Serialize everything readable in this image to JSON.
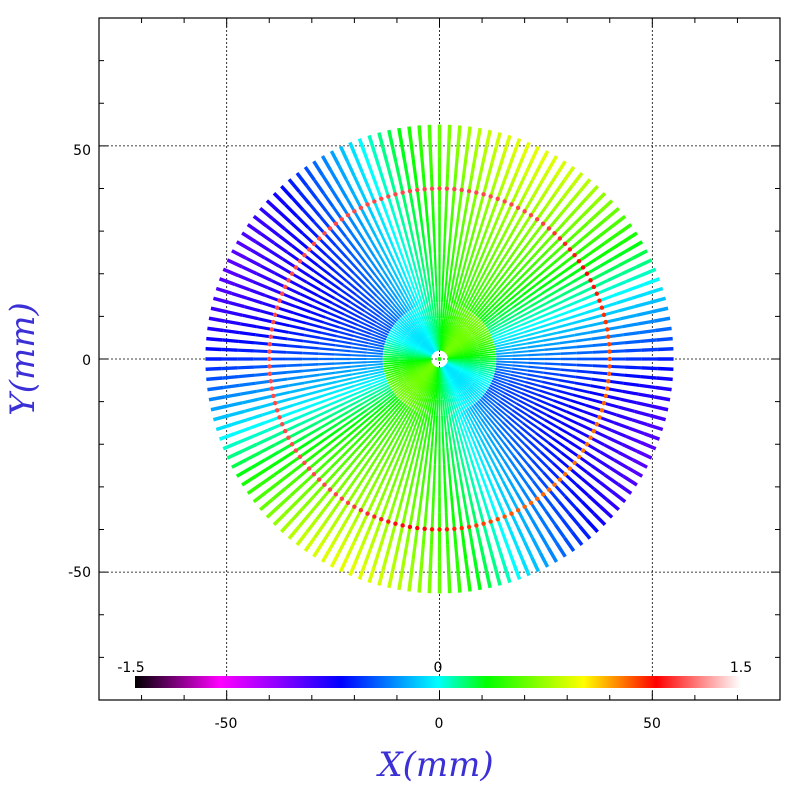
{
  "chart_data": {
    "type": "scatter",
    "xlabel": "X(mm)",
    "ylabel": "Y(mm)",
    "xlim": [
      -80,
      80
    ],
    "ylim": [
      -80,
      80
    ],
    "xticks": [
      -50,
      0,
      50
    ],
    "yticks": [
      -50,
      0,
      50
    ],
    "xtick_labels": [
      "-50",
      "0",
      "50"
    ],
    "ytick_labels": [
      "-50",
      "0",
      "50"
    ],
    "grid": true,
    "pattern": {
      "spokes": 144,
      "outer_radius": 55,
      "ring_radius": 40,
      "ring_value": 1.2
    },
    "colorbar": {
      "min": -1.5,
      "max": 1.5,
      "labels": [
        "-1.5",
        "0",
        "1.5"
      ],
      "stops": [
        "#000000",
        "#ff00ff",
        "#8800ff",
        "#0000ff",
        "#00ffff",
        "#00ff00",
        "#ffff00",
        "#ff0000",
        "#ffffff"
      ]
    }
  }
}
